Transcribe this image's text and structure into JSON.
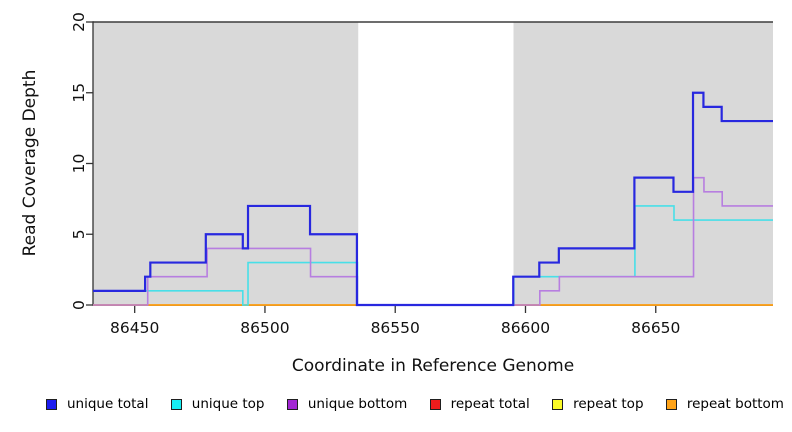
{
  "chart_data": {
    "type": "line",
    "subtype": "step-after",
    "title": "",
    "xlabel": "Coordinate in Reference Genome",
    "ylabel": "Read Coverage Depth",
    "xlim": [
      86434,
      86695
    ],
    "ylim": [
      0,
      20
    ],
    "x_ticks": [
      86450,
      86500,
      86550,
      86600,
      86650
    ],
    "y_ticks": [
      0,
      5,
      10,
      15,
      20
    ],
    "grid": false,
    "legend_position": "bottom",
    "colors": {
      "shade": "#d9d9d9",
      "frame": "#3d3d3d",
      "axis": "#333333"
    },
    "shaded_regions": [
      [
        86434,
        86535.8
      ],
      [
        86595.4,
        86695
      ]
    ],
    "top_cap_value": 20,
    "series": [
      {
        "name": "repeat total",
        "color": "#e11b1b",
        "width": 1.6,
        "points": [
          [
            86434,
            0
          ],
          [
            86695,
            0
          ]
        ]
      },
      {
        "name": "repeat top",
        "color": "#f2f20e",
        "width": 1.6,
        "points": [
          [
            86434,
            0
          ],
          [
            86695,
            0
          ]
        ]
      },
      {
        "name": "repeat bottom",
        "color": "#ff9e1e",
        "width": 1.6,
        "points": [
          [
            86434,
            0
          ],
          [
            86695,
            0
          ]
        ]
      },
      {
        "name": "unique top",
        "color": "#48dfe8",
        "width": 1.6,
        "points": [
          [
            86434,
            1
          ],
          [
            86491.5,
            0
          ],
          [
            86493.5,
            3
          ],
          [
            86535.5,
            0
          ],
          [
            86595.5,
            2
          ],
          [
            86642,
            7
          ],
          [
            86657,
            6
          ],
          [
            86695,
            6
          ]
        ]
      },
      {
        "name": "unique bottom",
        "color": "#b77ee0",
        "width": 1.6,
        "points": [
          [
            86434,
            0
          ],
          [
            86455,
            2
          ],
          [
            86477.8,
            4
          ],
          [
            86517.5,
            2
          ],
          [
            86535.5,
            0
          ],
          [
            86605.5,
            1
          ],
          [
            86613,
            2
          ],
          [
            86664.5,
            9
          ],
          [
            86668.5,
            8
          ],
          [
            86675.5,
            7
          ],
          [
            86695,
            7
          ]
        ]
      },
      {
        "name": "unique total",
        "color": "#2828df",
        "width": 2.2,
        "points": [
          [
            86434,
            1
          ],
          [
            86454,
            2
          ],
          [
            86456,
            3
          ],
          [
            86477.3,
            5
          ],
          [
            86491.5,
            4
          ],
          [
            86493.5,
            7
          ],
          [
            86517.3,
            5
          ],
          [
            86535.3,
            0
          ],
          [
            86595.3,
            2
          ],
          [
            86605.3,
            3
          ],
          [
            86612.8,
            4
          ],
          [
            86641.8,
            9
          ],
          [
            86656.8,
            8
          ],
          [
            86664.3,
            15
          ],
          [
            86668.3,
            14
          ],
          [
            86675.3,
            13
          ],
          [
            86695,
            13
          ]
        ]
      }
    ],
    "legend": [
      {
        "label": "unique total",
        "fill": "#1c1cf0"
      },
      {
        "label": "unique top",
        "fill": "#16eef2"
      },
      {
        "label": "unique bottom",
        "fill": "#a227d3"
      },
      {
        "label": "repeat total",
        "fill": "#ee1c1c"
      },
      {
        "label": "repeat top",
        "fill": "#fbfb28"
      },
      {
        "label": "repeat bottom",
        "fill": "#ffa318"
      }
    ]
  }
}
